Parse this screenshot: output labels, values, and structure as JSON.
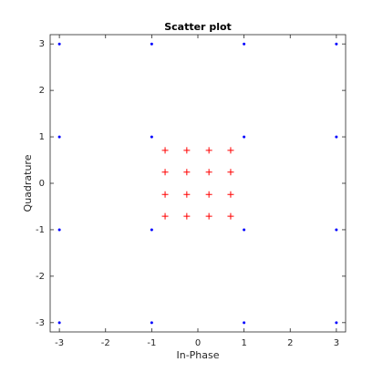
{
  "chart_data": {
    "type": "scatter",
    "title": "Scatter plot",
    "x_label": "In-Phase",
    "y_label": "Quadrature",
    "xlim": [
      -3.2,
      3.2
    ],
    "ylim": [
      -3.2,
      3.2
    ],
    "xticks": [
      -3,
      -2,
      -1,
      0,
      1,
      2,
      3
    ],
    "yticks": [
      -3,
      -2,
      -1,
      0,
      1,
      2,
      3
    ],
    "grid": false,
    "series": [
      {
        "color": "#0000ff",
        "marker": "dot",
        "x": [
          -3,
          -3,
          -3,
          -3,
          -1,
          -1,
          -1,
          -1,
          1,
          1,
          1,
          1,
          3,
          3,
          3,
          3
        ],
        "values": [
          -3,
          -1,
          1,
          3,
          -3,
          -1,
          1,
          3,
          -3,
          -1,
          1,
          3,
          -3,
          -1,
          1,
          3
        ]
      },
      {
        "color": "#ff0000",
        "marker": "plus",
        "x": [
          -0.71,
          -0.71,
          -0.71,
          -0.71,
          -0.24,
          -0.24,
          -0.24,
          -0.24,
          0.24,
          0.24,
          0.24,
          0.24,
          0.71,
          0.71,
          0.71,
          0.71
        ],
        "values": [
          -0.71,
          -0.24,
          0.24,
          0.71,
          -0.71,
          -0.24,
          0.24,
          0.71,
          -0.71,
          -0.24,
          0.24,
          0.71,
          -0.71,
          -0.24,
          0.24,
          0.71
        ]
      }
    ]
  }
}
